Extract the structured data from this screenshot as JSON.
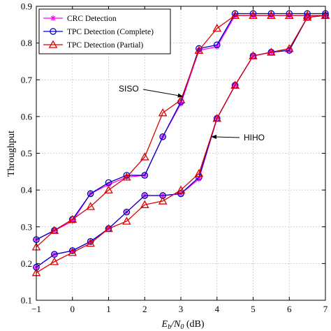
{
  "chart_data": {
    "type": "line",
    "xlabel": "E_b/N_0 (dB)",
    "ylabel": "Throughput",
    "xlim": [
      -1,
      7
    ],
    "ylim": [
      0.1,
      0.9
    ],
    "xticks": [
      -1,
      0,
      1,
      2,
      3,
      4,
      5,
      6,
      7
    ],
    "yticks": [
      0.1,
      0.2,
      0.3,
      0.4,
      0.5,
      0.6,
      0.7,
      0.8,
      0.9
    ],
    "x": [
      -1,
      -0.5,
      0,
      0.5,
      1,
      1.5,
      2,
      2.5,
      3,
      3.5,
      4,
      4.5,
      5,
      5.5,
      6,
      6.5,
      7
    ],
    "grid": true,
    "legend_position": "top-left",
    "series": [
      {
        "name": "CRC Detection",
        "color": "#ff00ff",
        "marker": "star",
        "group": "SISO",
        "values": [
          0.265,
          0.29,
          0.315,
          0.39,
          0.415,
          0.435,
          0.44,
          0.545,
          0.635,
          0.78,
          0.79,
          0.875,
          0.875,
          0.875,
          0.875,
          0.875,
          0.875
        ]
      },
      {
        "name": "TPC Detection (Complete)",
        "color": "#0000cc",
        "marker": "circle",
        "group": "SISO",
        "values": [
          0.265,
          0.29,
          0.32,
          0.39,
          0.42,
          0.44,
          0.44,
          0.545,
          0.64,
          0.785,
          0.795,
          0.88,
          0.88,
          0.88,
          0.88,
          0.88,
          0.88
        ]
      },
      {
        "name": "TPC Detection (Partial)",
        "color": "#dd0000",
        "marker": "triangle",
        "group": "SISO",
        "values": [
          0.245,
          0.29,
          0.32,
          0.355,
          0.4,
          0.435,
          0.49,
          0.61,
          0.645,
          0.78,
          0.84,
          0.875,
          0.875,
          0.875,
          0.875,
          0.875,
          0.875
        ]
      },
      {
        "name": "CRC Detection",
        "color": "#ff00ff",
        "marker": "star",
        "group": "HIHO",
        "values": [
          0.19,
          0.225,
          0.235,
          0.26,
          0.295,
          0.34,
          0.385,
          0.385,
          0.39,
          0.43,
          0.595,
          0.685,
          0.765,
          0.775,
          0.78,
          0.87,
          0.875
        ]
      },
      {
        "name": "TPC Detection (Complete)",
        "color": "#0000cc",
        "marker": "circle",
        "group": "HIHO",
        "values": [
          0.19,
          0.225,
          0.235,
          0.26,
          0.295,
          0.34,
          0.385,
          0.385,
          0.39,
          0.435,
          0.595,
          0.685,
          0.765,
          0.775,
          0.78,
          0.87,
          0.875
        ]
      },
      {
        "name": "TPC Detection (Partial)",
        "color": "#dd0000",
        "marker": "triangle",
        "group": "HIHO",
        "values": [
          0.175,
          0.205,
          0.23,
          0.255,
          0.295,
          0.315,
          0.36,
          0.37,
          0.4,
          0.445,
          0.595,
          0.685,
          0.765,
          0.775,
          0.785,
          0.87,
          0.875
        ]
      }
    ],
    "legend": [
      "CRC Detection",
      "TPC Detection (Complete)",
      "TPC Detection (Partial)"
    ],
    "annotations": [
      {
        "text": "SISO",
        "arrow_to": [
          3.05,
          0.655
        ]
      },
      {
        "text": "HIHO",
        "arrow_to": [
          3.85,
          0.545
        ]
      }
    ]
  }
}
